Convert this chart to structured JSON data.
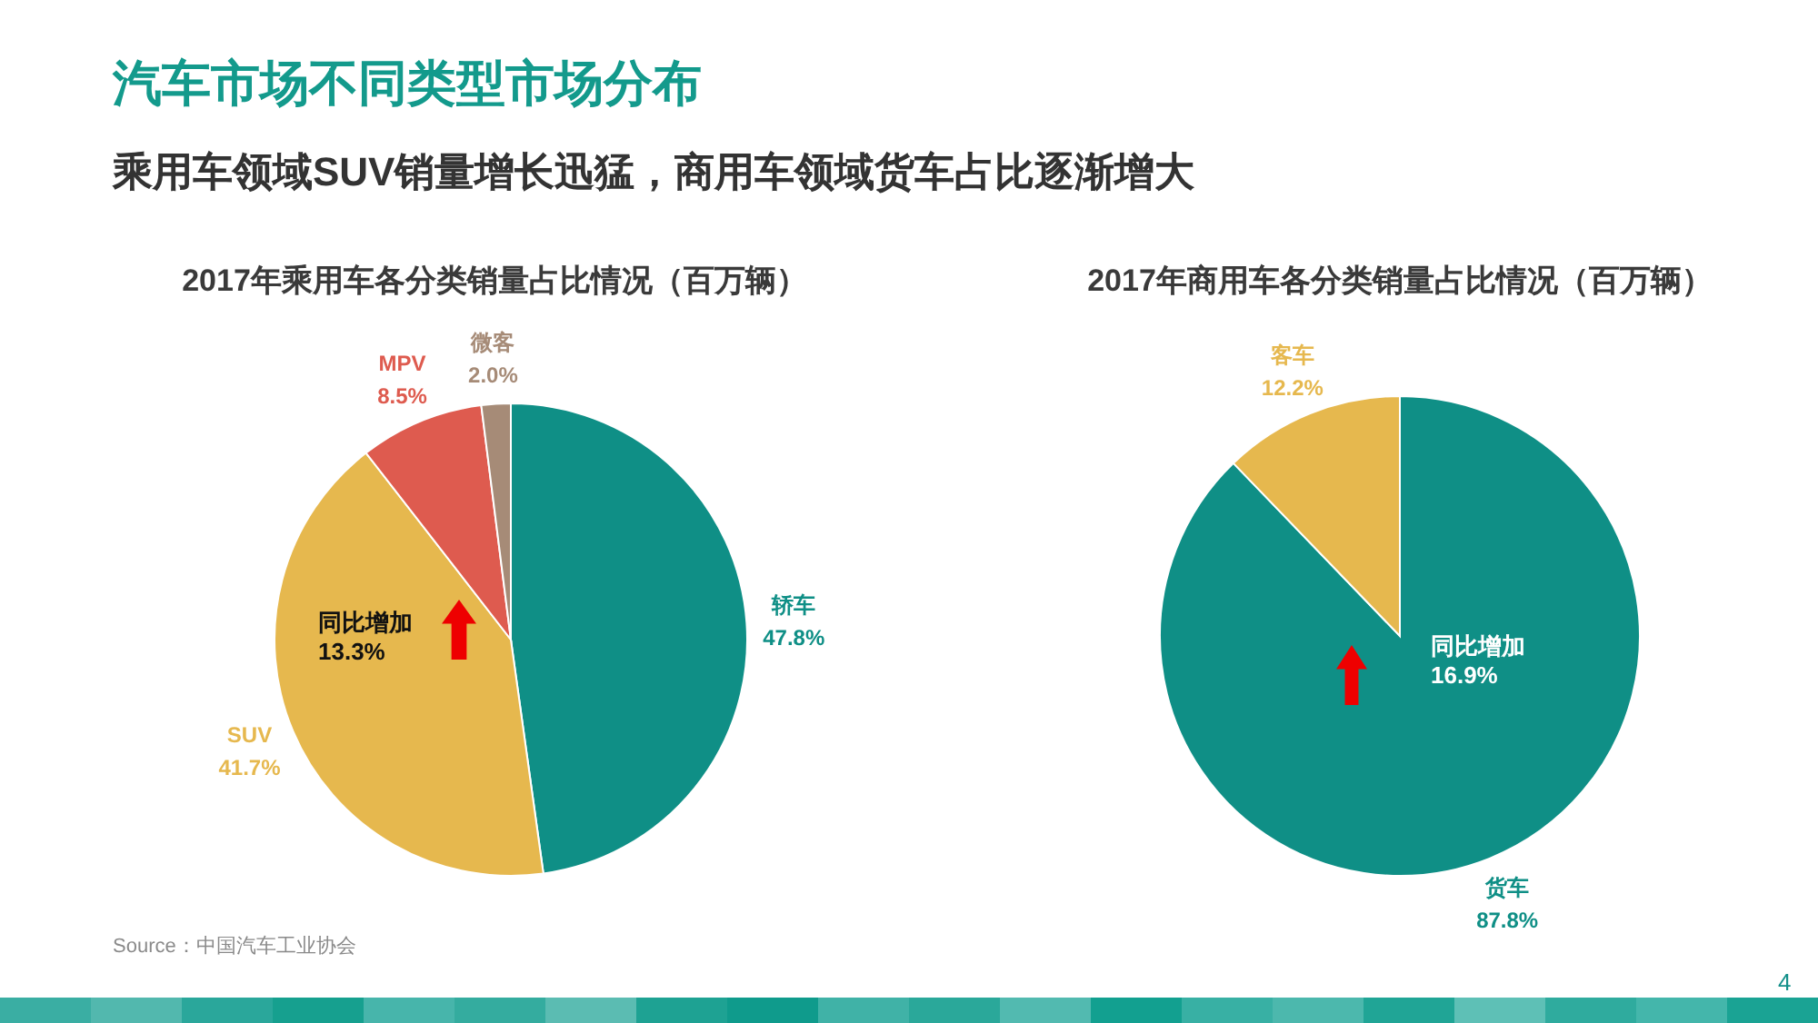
{
  "chart_data": [
    {
      "type": "other",
      "title": "汽车市场不同类型市场分布",
      "subtitle": "乘用车领域SUV销量增长迅猛，商用车领域货车占比逐渐增大"
    },
    {
      "type": "pie",
      "title": "2017年乘用车各分类销量占比情况（百万辆）",
      "categories": [
        "轿车",
        "SUV",
        "MPV",
        "微客"
      ],
      "values": [
        47.8,
        41.7,
        8.5,
        2.0
      ],
      "colors": [
        "#0f8f86",
        "#e6b84e",
        "#de5b4f",
        "#a68b77"
      ],
      "value_labels": [
        "47.8%",
        "41.7%",
        "8.5%",
        "2.0%"
      ],
      "annotations": [
        "同比增加\n13.3%",
        "Source：中国汽车工业协会"
      ]
    },
    {
      "type": "pie",
      "title": "2017年商用车各分类销量占比情况（百万辆）",
      "categories": [
        "货车",
        "客车"
      ],
      "values": [
        87.8,
        12.2
      ],
      "colors": [
        "#0f8f86",
        "#e6b84e"
      ],
      "value_labels": [
        "87.8%",
        "12.2%"
      ],
      "annotations": [
        "同比增加\n16.9%",
        "4"
      ]
    }
  ]
}
